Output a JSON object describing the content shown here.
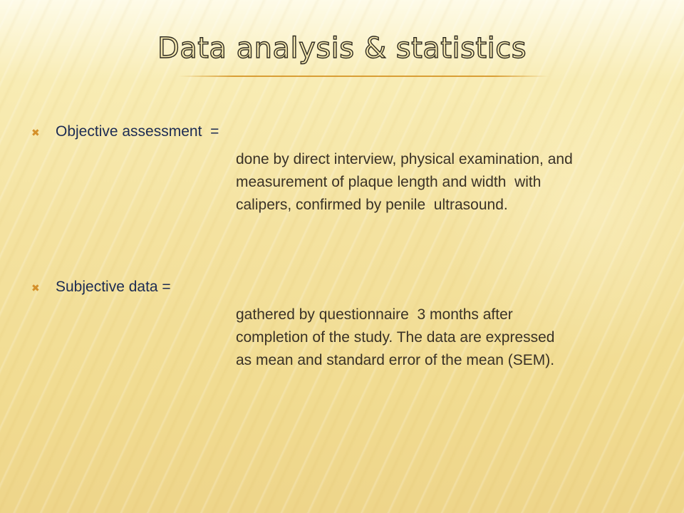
{
  "slide": {
    "title": "Data analysis & statistics",
    "colors": {
      "accent": "#d4902a",
      "heading": "#1c2b52",
      "body": "#3a3226",
      "background": "#f4e2a0"
    },
    "items": [
      {
        "bullet_icon": "x-mark-icon",
        "heading": "Objective assessment  =",
        "lines": [
          "done by direct interview, physical examination, and",
          "measurement of plaque length and width  with",
          "calipers, confirmed by penile  ultrasound."
        ]
      },
      {
        "bullet_icon": "x-mark-icon",
        "heading": "Subjective data =",
        "lines": [
          "gathered by questionnaire  3 months after",
          "completion of the study. The data are expressed",
          "as mean and standard error of the mean (SEM)."
        ]
      }
    ]
  }
}
